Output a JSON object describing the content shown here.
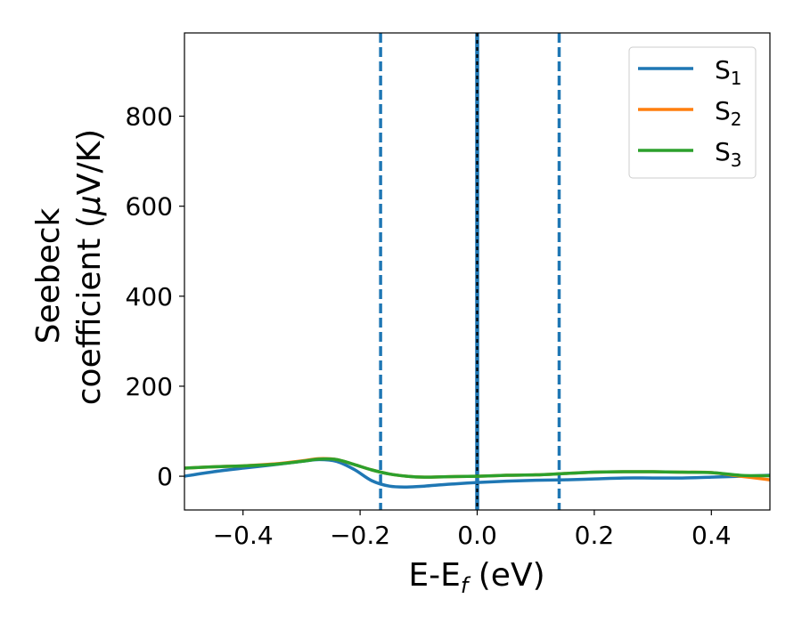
{
  "chart_data": {
    "type": "line",
    "xlabel_main": "E-E",
    "xlabel_sub": "f",
    "xlabel_unit": " (eV)",
    "ylabel_line1": "Seebeck",
    "ylabel_line2_text": "coefficient  (",
    "ylabel_line2_mu": "μ",
    "ylabel_line2_unit": "V/K)",
    "xlim": [
      -0.5,
      0.5
    ],
    "ylim": [
      -75,
      985
    ],
    "xticks": [
      -0.4,
      -0.2,
      0.0,
      0.2,
      0.4
    ],
    "xtick_labels": [
      "−0.4",
      "−0.2",
      "0.0",
      "0.2",
      "0.4"
    ],
    "yticks": [
      0,
      200,
      400,
      600,
      800
    ],
    "ytick_labels": [
      "0",
      "200",
      "400",
      "600",
      "800"
    ],
    "legend_position": "top-right",
    "vlines": [
      {
        "x": -0.165,
        "style": "dashed",
        "color": "#1f77b4"
      },
      {
        "x": 0.0,
        "style": "solid",
        "color": "#1f77b4"
      },
      {
        "x": 0.0,
        "style": "dotted",
        "color": "#000000"
      },
      {
        "x": 0.14,
        "style": "dashed",
        "color": "#1f77b4"
      }
    ],
    "series": [
      {
        "name_main": "S",
        "name_sub": "1",
        "color": "#1f77b4",
        "x": [
          -0.5,
          -0.45,
          -0.4,
          -0.35,
          -0.3,
          -0.27,
          -0.24,
          -0.21,
          -0.18,
          -0.15,
          -0.12,
          -0.09,
          -0.05,
          0.0,
          0.05,
          0.1,
          0.15,
          0.2,
          0.25,
          0.3,
          0.35,
          0.4,
          0.45,
          0.5
        ],
        "y": [
          0,
          10,
          18,
          25,
          33,
          37,
          33,
          15,
          -10,
          -22,
          -24,
          -22,
          -18,
          -14,
          -11,
          -9,
          -8,
          -6,
          -4,
          -4,
          -4,
          -2,
          0,
          2
        ]
      },
      {
        "name_main": "S",
        "name_sub": "2",
        "color": "#ff7f0e",
        "x": [
          -0.5,
          -0.45,
          -0.4,
          -0.35,
          -0.3,
          -0.27,
          -0.24,
          -0.21,
          -0.18,
          -0.15,
          -0.12,
          -0.09,
          -0.05,
          0.0,
          0.05,
          0.1,
          0.15,
          0.2,
          0.25,
          0.3,
          0.35,
          0.4,
          0.45,
          0.5
        ],
        "y": [
          18,
          21,
          23,
          27,
          34,
          39,
          37,
          26,
          14,
          5,
          0,
          -2,
          -1,
          0,
          2,
          3,
          6,
          9,
          10,
          10,
          9,
          8,
          0,
          -8
        ]
      },
      {
        "name_main": "S",
        "name_sub": "3",
        "color": "#2ca02c",
        "x": [
          -0.5,
          -0.45,
          -0.4,
          -0.35,
          -0.3,
          -0.27,
          -0.24,
          -0.21,
          -0.18,
          -0.15,
          -0.12,
          -0.09,
          -0.05,
          0.0,
          0.05,
          0.1,
          0.15,
          0.2,
          0.25,
          0.3,
          0.35,
          0.4,
          0.45,
          0.5
        ],
        "y": [
          18,
          21,
          23,
          26,
          33,
          38,
          37,
          26,
          14,
          5,
          0,
          -2,
          -1,
          0,
          2,
          3,
          6,
          9,
          10,
          10,
          9,
          8,
          2,
          1
        ]
      }
    ]
  }
}
